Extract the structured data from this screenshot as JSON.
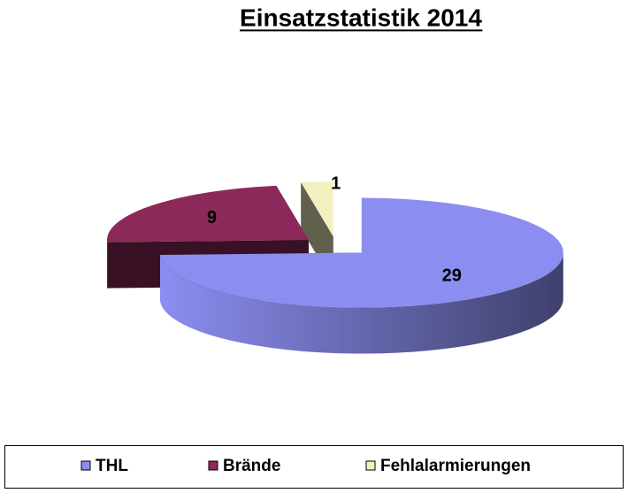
{
  "chart_data": {
    "type": "pie",
    "title": "Einsatzstatistik 2014",
    "categories": [
      "THL",
      "Brände",
      "Fehlalarmierungen"
    ],
    "values": [
      29,
      9,
      1
    ],
    "colors": [
      "#8b8ef0",
      "#8b2a5a",
      "#f3f0c0"
    ],
    "legend": "bottom"
  }
}
